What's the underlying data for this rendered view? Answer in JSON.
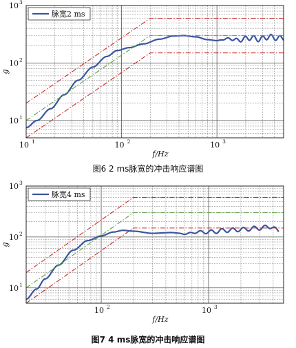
{
  "figures": [
    {
      "caption": "图6   2 ms脉宽的冲击响应谱图",
      "chart_data": {
        "type": "line",
        "xscale": "log",
        "yscale": "log",
        "xlim": [
          10,
          5000
        ],
        "ylim": [
          5,
          1000
        ],
        "xlabel": "f/Hz",
        "ylabel": "g",
        "xticks": [
          {
            "v": 10,
            "base": "10",
            "exp": "1"
          },
          {
            "v": 100,
            "base": "10",
            "exp": "2"
          },
          {
            "v": 1000,
            "base": "10",
            "exp": "3"
          }
        ],
        "yticks": [
          {
            "v": 10,
            "base": "10",
            "exp": "1"
          },
          {
            "v": 100,
            "base": "10",
            "exp": "2"
          },
          {
            "v": 1000,
            "base": "10",
            "exp": "3"
          }
        ],
        "legend": {
          "position": "top-left",
          "label": "脉宽2 ms"
        },
        "grid": true,
        "series": [
          {
            "role": "measured",
            "color": "#3a559f",
            "x": [
              10,
              13,
              18,
              25,
              35,
              50,
              70,
              90,
              120,
              170,
              250,
              350,
              450,
              600,
              800,
              1000,
              1300,
              1700,
              2200,
              2800,
              3500,
              4500,
              5000
            ],
            "y": [
              7.5,
              10,
              16,
              28,
              50,
              85,
              130,
              165,
              185,
              215,
              260,
              295,
              300,
              285,
              255,
              245,
              265,
              250,
              275,
              260,
              285,
              270,
              275
            ],
            "wiggle": {
              "from": 1000,
              "amp": 0.045,
              "freq": 11
            }
          },
          {
            "role": "upper-limit",
            "color": "#cc2a2a",
            "style": "dash-dot",
            "x": [
              10,
              200,
              5000
            ],
            "y": [
              20,
              600,
              600
            ]
          },
          {
            "role": "reference",
            "color": "#5aa23c",
            "style": "dash-dot",
            "x": [
              10,
              200,
              5000
            ],
            "y": [
              10,
              300,
              300
            ]
          },
          {
            "role": "lower-limit",
            "color": "#cc2a2a",
            "style": "dash-dot",
            "x": [
              10,
              200,
              5000
            ],
            "y": [
              5,
              150,
              150
            ]
          }
        ]
      }
    },
    {
      "caption": "图7   4 ms脉宽的冲击响应谱图",
      "chart_data": {
        "type": "line",
        "xscale": "log",
        "yscale": "log",
        "xlim": [
          20,
          5000
        ],
        "ylim": [
          5,
          1000
        ],
        "xlabel": "f/Hz",
        "ylabel": "g",
        "xticks": [
          {
            "v": 100,
            "base": "10",
            "exp": "2"
          },
          {
            "v": 1000,
            "base": "10",
            "exp": "3"
          }
        ],
        "yticks": [
          {
            "v": 10,
            "base": "10",
            "exp": "1"
          },
          {
            "v": 100,
            "base": "10",
            "exp": "2"
          },
          {
            "v": 1000,
            "base": "10",
            "exp": "3"
          }
        ],
        "legend": {
          "position": "top-left",
          "label": "脉宽4 ms"
        },
        "grid": true,
        "series": [
          {
            "role": "measured",
            "color": "#3a559f",
            "x": [
              20,
              25,
              30,
              40,
              55,
              75,
              100,
              130,
              160,
              200,
              300,
              450,
              600,
              800,
              1000,
              1500,
              2000,
              3000,
              3800,
              4500
            ],
            "y": [
              6,
              9.5,
              15,
              28,
              55,
              85,
              105,
              125,
              135,
              130,
              118,
              122,
              115,
              125,
              125,
              135,
              140,
              150,
              160,
              130
            ],
            "wiggle": {
              "from": 500,
              "amp": 0.04,
              "freq": 10
            }
          },
          {
            "role": "upper-limit",
            "color": "#cc2a2a",
            "style": "dash-dot",
            "x": [
              20,
              200,
              5000
            ],
            "y": [
              20,
              600,
              600
            ]
          },
          {
            "role": "reference",
            "color": "#5aa23c",
            "style": "dash-dot",
            "x": [
              20,
              200,
              5000
            ],
            "y": [
              10,
              300,
              300
            ]
          },
          {
            "role": "lower-limit",
            "color": "#cc2a2a",
            "style": "dash-dot",
            "x": [
              20,
              200,
              5000
            ],
            "y": [
              5,
              150,
              150
            ]
          }
        ]
      }
    }
  ]
}
